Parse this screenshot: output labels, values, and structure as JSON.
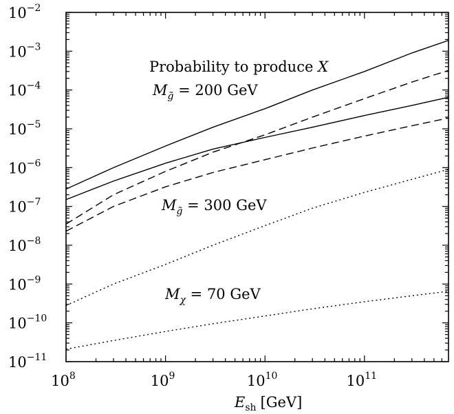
{
  "chart_data": {
    "type": "line",
    "title": "",
    "xlabel": {
      "main": "E",
      "sub": "sh",
      "unit": "[GeV]"
    },
    "ylabel": "",
    "xscale": "log",
    "yscale": "log",
    "xlim": [
      100000000,
      700000000000
    ],
    "ylim": [
      1e-11,
      0.01
    ],
    "grid": false,
    "x_ticks": [
      {
        "base": "10",
        "exp": "8",
        "value": 100000000
      },
      {
        "base": "10",
        "exp": "9",
        "value": 1000000000
      },
      {
        "base": "10",
        "exp": "10",
        "value": 10000000000
      },
      {
        "base": "10",
        "exp": "11",
        "value": 100000000000
      }
    ],
    "y_ticks": [
      {
        "base": "10",
        "exp": "−2",
        "value": 0.01
      },
      {
        "base": "10",
        "exp": "−3",
        "value": 0.001
      },
      {
        "base": "10",
        "exp": "−4",
        "value": 0.0001
      },
      {
        "base": "10",
        "exp": "−5",
        "value": 1e-05
      },
      {
        "base": "10",
        "exp": "−6",
        "value": 1e-06
      },
      {
        "base": "10",
        "exp": "−7",
        "value": 1e-07
      },
      {
        "base": "10",
        "exp": "−8",
        "value": 1e-08
      },
      {
        "base": "10",
        "exp": "−9",
        "value": 1e-09
      },
      {
        "base": "10",
        "exp": "−10",
        "value": 1e-10
      },
      {
        "base": "10",
        "exp": "−11",
        "value": 1e-11
      }
    ],
    "annotations": {
      "heading": {
        "text": "Probability to produce ",
        "var": "X"
      },
      "gluino_200": {
        "sym": "M",
        "sub": "g̃",
        "rest": " = 200 GeV"
      },
      "gluino_300": {
        "sym": "M",
        "sub": "g̃",
        "rest": " = 300 GeV"
      },
      "chi_70": {
        "sym": "M",
        "sub": "χ",
        "rest": " = 70 GeV"
      }
    },
    "series": [
      {
        "style": "solid",
        "x": [
          100000000,
          300000000,
          1000000000,
          3000000000,
          10000000000,
          30000000000,
          100000000000,
          300000000000,
          700000000000
        ],
        "y": [
          2.8e-07,
          1e-06,
          3.6e-06,
          1.1e-05,
          3.3e-05,
          0.0001,
          0.0003,
          0.0009,
          0.0019
        ]
      },
      {
        "style": "solid",
        "x": [
          100000000,
          300000000,
          1000000000,
          3000000000,
          10000000000,
          30000000000,
          100000000000,
          300000000000,
          700000000000
        ],
        "y": [
          1.5e-07,
          4.5e-07,
          1.3e-06,
          3e-06,
          6e-06,
          1.1e-05,
          2.2e-05,
          4e-05,
          6.5e-05
        ]
      },
      {
        "style": "dashed",
        "x": [
          100000000,
          300000000,
          1000000000,
          3000000000,
          10000000000,
          30000000000,
          100000000000,
          300000000000,
          700000000000
        ],
        "y": [
          3.5e-08,
          2e-07,
          8e-07,
          2.5e-06,
          7e-06,
          2e-05,
          6e-05,
          0.00016,
          0.00032
        ]
      },
      {
        "style": "dashed",
        "x": [
          100000000,
          300000000,
          1000000000,
          3000000000,
          10000000000,
          30000000000,
          100000000000,
          300000000000,
          700000000000
        ],
        "y": [
          2.3e-08,
          1e-07,
          3.2e-07,
          7.5e-07,
          1.6e-06,
          3.2e-06,
          6.5e-06,
          1.2e-05,
          1.9e-05
        ]
      },
      {
        "style": "dotted",
        "x": [
          100000000,
          300000000,
          1000000000,
          3000000000,
          10000000000,
          30000000000,
          100000000000,
          300000000000,
          700000000000
        ],
        "y": [
          2.8e-10,
          1e-09,
          3.2e-09,
          1e-08,
          3.2e-08,
          9e-08,
          2.3e-07,
          5e-07,
          9e-07
        ]
      },
      {
        "style": "dotted",
        "x": [
          100000000,
          300000000,
          1000000000,
          3000000000,
          10000000000,
          30000000000,
          100000000000,
          300000000000,
          700000000000
        ],
        "y": [
          2.1e-11,
          3.5e-11,
          6e-11,
          9.5e-11,
          1.5e-10,
          2.3e-10,
          3.5e-10,
          5e-10,
          6.5e-10
        ]
      }
    ]
  }
}
